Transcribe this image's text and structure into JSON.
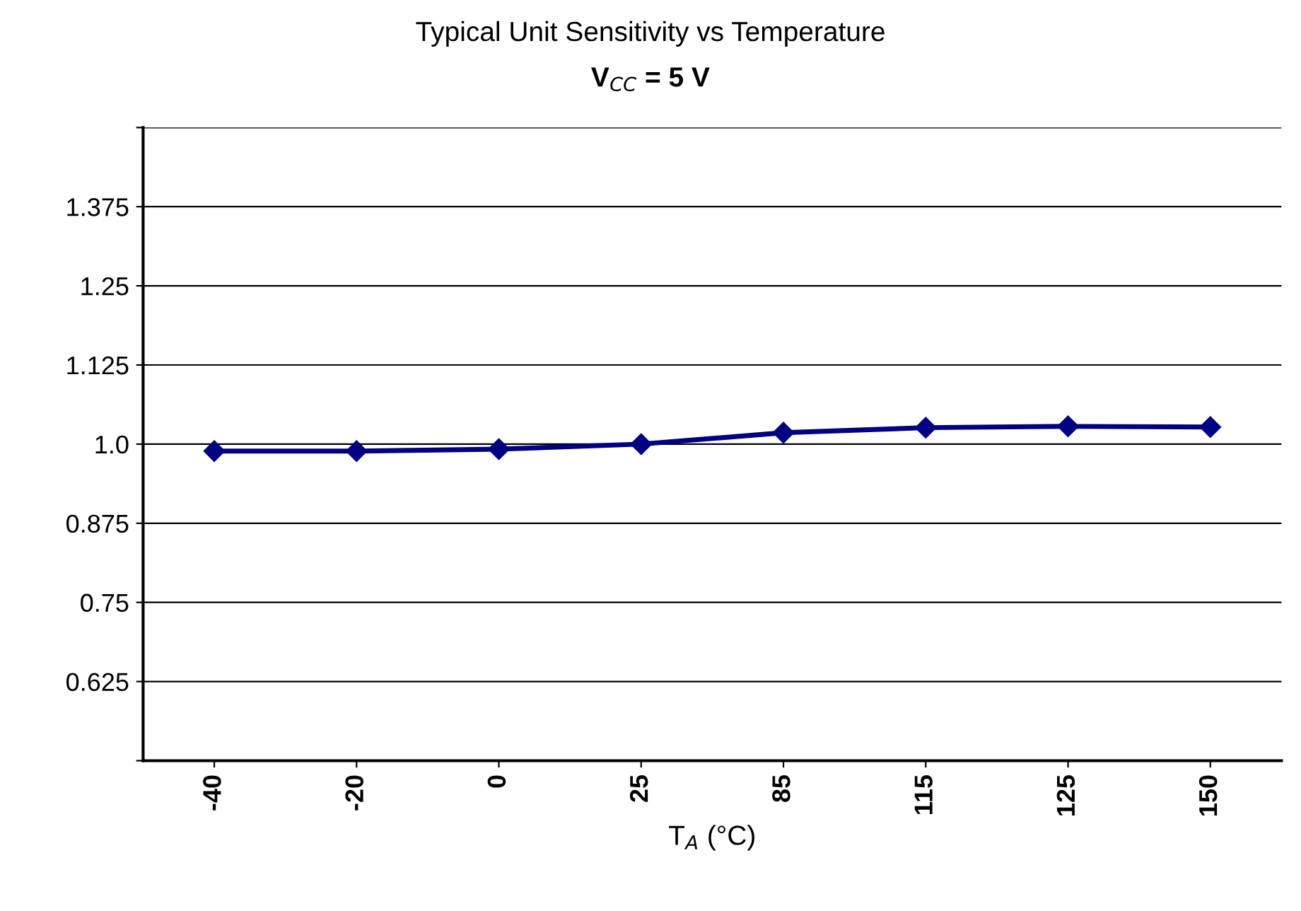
{
  "chart_data": {
    "type": "line",
    "title": "Typical Unit Sensitivity vs Temperature",
    "subtitle": "V$_{CC}$ = 5 V",
    "xlabel": "T$_{A}$ (°C)",
    "categories": [
      "-40",
      "-20",
      "0",
      "25",
      "85",
      "115",
      "125",
      "150"
    ],
    "series": [
      {
        "color": "#000080",
        "values": [
          0.989,
          0.989,
          0.992,
          1.0,
          1.018,
          1.026,
          1.028,
          1.027
        ]
      }
    ],
    "ylim": [
      0.5,
      1.5
    ],
    "yticks": [
      {
        "value": 0.5,
        "label": null
      },
      0.625,
      0.75,
      0.875,
      {
        "value": 1.0,
        "label": "1.0"
      },
      1.125,
      1.25,
      1.375,
      {
        "value": 1.5,
        "label": null
      }
    ],
    "grid": "y",
    "marker": "diamond",
    "line_style": "solid"
  }
}
